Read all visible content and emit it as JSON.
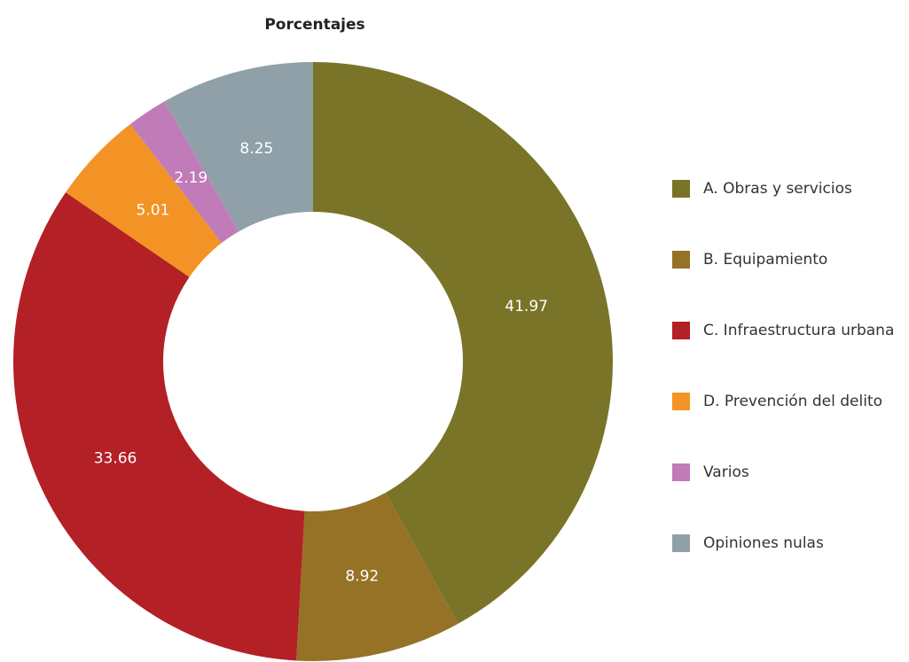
{
  "chart_data": {
    "type": "donut",
    "title": "Porcentajes",
    "categories": [
      "A. Obras y servicios",
      "B. Equipamiento",
      "C. Infraestructura urbana",
      "D. Prevención del delito",
      "Varios",
      "Opiniones nulas"
    ],
    "values": [
      41.97,
      8.92,
      33.66,
      5.01,
      2.19,
      8.25
    ],
    "colors": [
      "#7a7428",
      "#967226",
      "#b32025",
      "#f39325",
      "#c17bb9",
      "#8fa0a9"
    ],
    "legend": "right"
  }
}
